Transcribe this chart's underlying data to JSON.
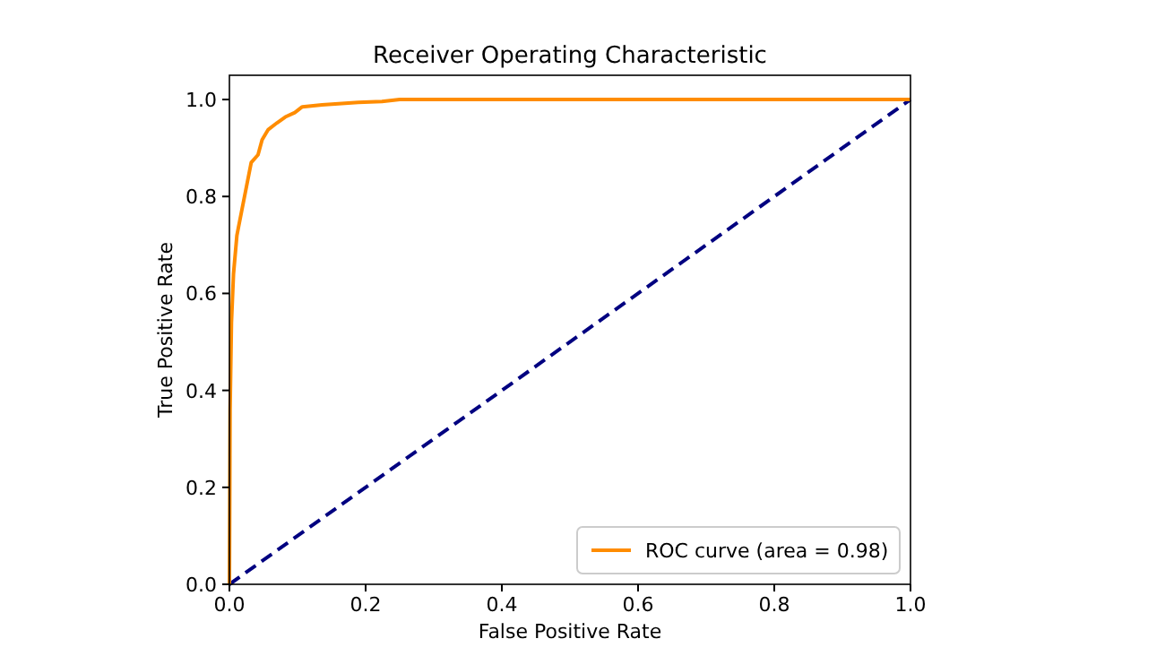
{
  "chart_data": {
    "type": "line",
    "title": "Receiver Operating Characteristic",
    "xlabel": "False Positive Rate",
    "ylabel": "True Positive Rate",
    "xlim": [
      0,
      1
    ],
    "ylim": [
      0,
      1.05
    ],
    "xticks": [
      {
        "value": 0,
        "label": "0.0"
      },
      {
        "value": 0.2,
        "label": "0.2"
      },
      {
        "value": 0.4,
        "label": "0.4"
      },
      {
        "value": 0.6,
        "label": "0.6"
      },
      {
        "value": 0.8,
        "label": "0.8"
      },
      {
        "value": 1,
        "label": "1.0"
      }
    ],
    "yticks": [
      {
        "value": 0,
        "label": "0.0"
      },
      {
        "value": 0.2,
        "label": "0.2"
      },
      {
        "value": 0.4,
        "label": "0.4"
      },
      {
        "value": 0.6,
        "label": "0.6"
      },
      {
        "value": 0.8,
        "label": "0.8"
      },
      {
        "value": 1,
        "label": "1.0"
      }
    ],
    "legend": "bottom right",
    "grid": false,
    "series": [
      {
        "name": "ROC curve (area = 0.98)",
        "color": "#ff8c00",
        "line_style": "solid",
        "x": [
          0,
          0.001,
          0.003,
          0.006,
          0.011,
          0.018,
          0.025,
          0.032,
          0.042,
          0.048,
          0.057,
          0.07,
          0.082,
          0.096,
          0.107,
          0.136,
          0.189,
          0.224,
          0.25,
          1
        ],
        "values": [
          0,
          0.36,
          0.54,
          0.64,
          0.72,
          0.77,
          0.82,
          0.87,
          0.886,
          0.917,
          0.938,
          0.952,
          0.964,
          0.973,
          0.985,
          0.989,
          0.994,
          0.996,
          1,
          1
        ]
      },
      {
        "color": "#000080",
        "line_style": "dashed",
        "x": [
          0,
          1
        ],
        "values": [
          0,
          1
        ]
      }
    ]
  }
}
